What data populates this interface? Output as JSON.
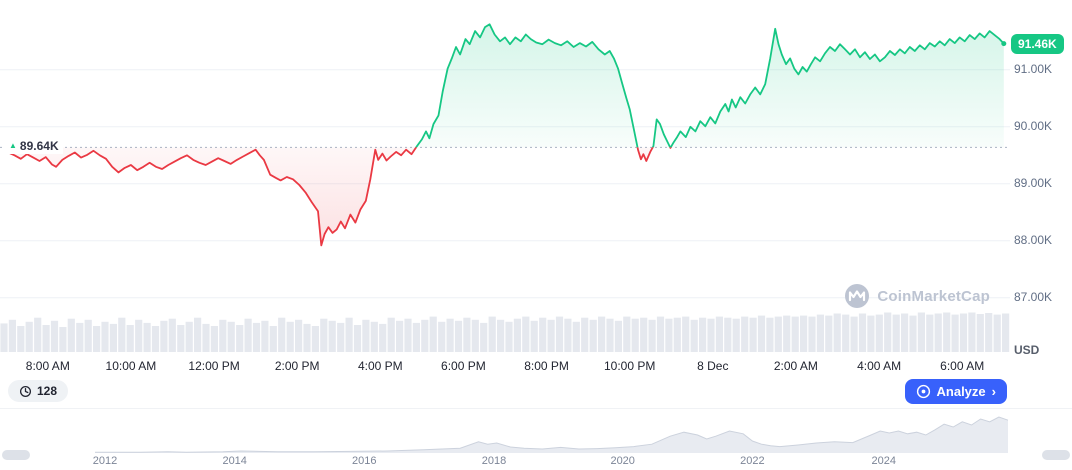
{
  "watermark": {
    "text": "CoinMarketCap"
  },
  "toolbar": {
    "history_count": "128",
    "analyze_label": "Analyze",
    "analyze_chevron": "›"
  },
  "chart_data": {
    "type": "line",
    "title": "Intraday price chart (USD)",
    "unit_label": "USD",
    "legend": "none",
    "grid": "horizontal",
    "baseline": {
      "value": 89.64,
      "label": "89.64K"
    },
    "last": {
      "value": 91.46,
      "label": "91.46K"
    },
    "ylim": [
      86.79,
      92.05
    ],
    "x_domain_hours": [
      -0.15,
      24.15
    ],
    "y_ticks": [
      {
        "value": 91.0,
        "label": "91.00K"
      },
      {
        "value": 90.0,
        "label": "90.00K"
      },
      {
        "value": 89.0,
        "label": "89.00K"
      },
      {
        "value": 88.0,
        "label": "88.00K"
      },
      {
        "value": 87.0,
        "label": "87.00K"
      }
    ],
    "x_ticks": [
      {
        "t": 1,
        "label": "8:00 AM"
      },
      {
        "t": 3,
        "label": "10:00 AM"
      },
      {
        "t": 5,
        "label": "12:00 PM"
      },
      {
        "t": 7,
        "label": "2:00 PM"
      },
      {
        "t": 9,
        "label": "4:00 PM"
      },
      {
        "t": 11,
        "label": "6:00 PM"
      },
      {
        "t": 13,
        "label": "8:00 PM"
      },
      {
        "t": 15,
        "label": "10:00 PM"
      },
      {
        "t": 17,
        "label": "8 Dec"
      },
      {
        "t": 19,
        "label": "2:00 AM"
      },
      {
        "t": 21,
        "label": "4:00 AM"
      },
      {
        "t": 23,
        "label": "6:00 AM"
      }
    ],
    "colors": {
      "up": "#16c784",
      "down": "#ea3943",
      "badge": "#16c784",
      "analyze_blue": "#3861fb"
    },
    "points": [
      [
        0.05,
        89.55
      ],
      [
        0.2,
        89.5
      ],
      [
        0.35,
        89.44
      ],
      [
        0.5,
        89.52
      ],
      [
        0.65,
        89.46
      ],
      [
        0.8,
        89.4
      ],
      [
        0.95,
        89.47
      ],
      [
        1.1,
        89.34
      ],
      [
        1.2,
        89.3
      ],
      [
        1.35,
        89.42
      ],
      [
        1.5,
        89.49
      ],
      [
        1.65,
        89.55
      ],
      [
        1.8,
        89.46
      ],
      [
        1.95,
        89.51
      ],
      [
        2.1,
        89.58
      ],
      [
        2.25,
        89.5
      ],
      [
        2.4,
        89.44
      ],
      [
        2.55,
        89.3
      ],
      [
        2.7,
        89.2
      ],
      [
        2.85,
        89.28
      ],
      [
        3.0,
        89.33
      ],
      [
        3.15,
        89.24
      ],
      [
        3.3,
        89.3
      ],
      [
        3.45,
        89.37
      ],
      [
        3.6,
        89.3
      ],
      [
        3.75,
        89.26
      ],
      [
        3.9,
        89.33
      ],
      [
        4.05,
        89.39
      ],
      [
        4.2,
        89.45
      ],
      [
        4.35,
        89.5
      ],
      [
        4.5,
        89.42
      ],
      [
        4.65,
        89.37
      ],
      [
        4.8,
        89.33
      ],
      [
        4.95,
        89.39
      ],
      [
        5.1,
        89.45
      ],
      [
        5.25,
        89.4
      ],
      [
        5.4,
        89.35
      ],
      [
        5.55,
        89.42
      ],
      [
        5.7,
        89.48
      ],
      [
        5.85,
        89.54
      ],
      [
        6.0,
        89.6
      ],
      [
        6.1,
        89.5
      ],
      [
        6.2,
        89.42
      ],
      [
        6.35,
        89.16
      ],
      [
        6.5,
        89.1
      ],
      [
        6.6,
        89.06
      ],
      [
        6.75,
        89.12
      ],
      [
        6.9,
        89.08
      ],
      [
        7.05,
        88.98
      ],
      [
        7.2,
        88.85
      ],
      [
        7.35,
        88.68
      ],
      [
        7.5,
        88.52
      ],
      [
        7.58,
        87.92
      ],
      [
        7.66,
        88.12
      ],
      [
        7.75,
        88.24
      ],
      [
        7.85,
        88.14
      ],
      [
        7.95,
        88.2
      ],
      [
        8.05,
        88.34
      ],
      [
        8.15,
        88.22
      ],
      [
        8.28,
        88.46
      ],
      [
        8.4,
        88.32
      ],
      [
        8.52,
        88.55
      ],
      [
        8.65,
        88.7
      ],
      [
        8.76,
        89.08
      ],
      [
        8.88,
        89.6
      ],
      [
        8.95,
        89.42
      ],
      [
        9.05,
        89.53
      ],
      [
        9.15,
        89.41
      ],
      [
        9.25,
        89.48
      ],
      [
        9.38,
        89.56
      ],
      [
        9.5,
        89.5
      ],
      [
        9.62,
        89.6
      ],
      [
        9.75,
        89.52
      ],
      [
        9.88,
        89.66
      ],
      [
        10.0,
        89.78
      ],
      [
        10.1,
        89.92
      ],
      [
        10.18,
        89.8
      ],
      [
        10.28,
        90.05
      ],
      [
        10.4,
        90.2
      ],
      [
        10.5,
        90.62
      ],
      [
        10.62,
        91.02
      ],
      [
        10.72,
        91.2
      ],
      [
        10.82,
        91.4
      ],
      [
        10.92,
        91.27
      ],
      [
        11.05,
        91.54
      ],
      [
        11.15,
        91.45
      ],
      [
        11.28,
        91.68
      ],
      [
        11.4,
        91.57
      ],
      [
        11.52,
        91.75
      ],
      [
        11.63,
        91.8
      ],
      [
        11.75,
        91.62
      ],
      [
        11.88,
        91.5
      ],
      [
        12.0,
        91.57
      ],
      [
        12.12,
        91.45
      ],
      [
        12.25,
        91.57
      ],
      [
        12.38,
        91.5
      ],
      [
        12.5,
        91.62
      ],
      [
        12.62,
        91.54
      ],
      [
        12.75,
        91.48
      ],
      [
        12.9,
        91.45
      ],
      [
        13.05,
        91.53
      ],
      [
        13.2,
        91.47
      ],
      [
        13.35,
        91.43
      ],
      [
        13.5,
        91.5
      ],
      [
        13.65,
        91.4
      ],
      [
        13.8,
        91.47
      ],
      [
        13.95,
        91.41
      ],
      [
        14.1,
        91.49
      ],
      [
        14.25,
        91.36
      ],
      [
        14.4,
        91.27
      ],
      [
        14.52,
        91.33
      ],
      [
        14.62,
        91.2
      ],
      [
        14.72,
        91.02
      ],
      [
        14.82,
        90.76
      ],
      [
        14.92,
        90.5
      ],
      [
        15.0,
        90.31
      ],
      [
        15.1,
        89.96
      ],
      [
        15.2,
        89.6
      ],
      [
        15.27,
        89.43
      ],
      [
        15.33,
        89.52
      ],
      [
        15.4,
        89.4
      ],
      [
        15.5,
        89.57
      ],
      [
        15.57,
        89.66
      ],
      [
        15.65,
        90.13
      ],
      [
        15.73,
        90.05
      ],
      [
        15.82,
        89.87
      ],
      [
        15.9,
        89.75
      ],
      [
        15.98,
        89.63
      ],
      [
        16.06,
        89.73
      ],
      [
        16.14,
        89.82
      ],
      [
        16.22,
        89.92
      ],
      [
        16.35,
        89.82
      ],
      [
        16.46,
        90.0
      ],
      [
        16.58,
        89.92
      ],
      [
        16.7,
        90.1
      ],
      [
        16.82,
        90.01
      ],
      [
        16.94,
        90.17
      ],
      [
        17.06,
        90.06
      ],
      [
        17.18,
        90.27
      ],
      [
        17.3,
        90.4
      ],
      [
        17.38,
        90.27
      ],
      [
        17.46,
        90.48
      ],
      [
        17.55,
        90.34
      ],
      [
        17.66,
        90.52
      ],
      [
        17.78,
        90.41
      ],
      [
        17.9,
        90.57
      ],
      [
        18.02,
        90.69
      ],
      [
        18.14,
        90.57
      ],
      [
        18.26,
        90.75
      ],
      [
        18.38,
        91.2
      ],
      [
        18.5,
        91.72
      ],
      [
        18.58,
        91.45
      ],
      [
        18.66,
        91.27
      ],
      [
        18.76,
        91.1
      ],
      [
        18.86,
        91.2
      ],
      [
        18.96,
        91.02
      ],
      [
        19.06,
        90.92
      ],
      [
        19.16,
        91.05
      ],
      [
        19.26,
        90.97
      ],
      [
        19.36,
        91.1
      ],
      [
        19.46,
        91.22
      ],
      [
        19.58,
        91.15
      ],
      [
        19.7,
        91.29
      ],
      [
        19.82,
        91.4
      ],
      [
        19.94,
        91.33
      ],
      [
        20.06,
        91.45
      ],
      [
        20.18,
        91.36
      ],
      [
        20.3,
        91.27
      ],
      [
        20.42,
        91.36
      ],
      [
        20.54,
        91.22
      ],
      [
        20.66,
        91.31
      ],
      [
        20.78,
        91.19
      ],
      [
        20.9,
        91.27
      ],
      [
        21.02,
        91.15
      ],
      [
        21.14,
        91.22
      ],
      [
        21.26,
        91.33
      ],
      [
        21.38,
        91.26
      ],
      [
        21.5,
        91.36
      ],
      [
        21.62,
        91.29
      ],
      [
        21.74,
        91.4
      ],
      [
        21.86,
        91.33
      ],
      [
        21.98,
        91.43
      ],
      [
        22.1,
        91.36
      ],
      [
        22.22,
        91.47
      ],
      [
        22.34,
        91.41
      ],
      [
        22.46,
        91.5
      ],
      [
        22.58,
        91.43
      ],
      [
        22.7,
        91.54
      ],
      [
        22.82,
        91.47
      ],
      [
        22.94,
        91.57
      ],
      [
        23.06,
        91.5
      ],
      [
        23.18,
        91.61
      ],
      [
        23.3,
        91.54
      ],
      [
        23.42,
        91.64
      ],
      [
        23.54,
        91.57
      ],
      [
        23.66,
        91.68
      ],
      [
        23.78,
        91.61
      ],
      [
        23.9,
        91.54
      ],
      [
        24.0,
        91.46
      ]
    ],
    "volume": [
      0.55,
      0.62,
      0.5,
      0.58,
      0.66,
      0.52,
      0.6,
      0.48,
      0.64,
      0.56,
      0.62,
      0.5,
      0.58,
      0.54,
      0.66,
      0.52,
      0.62,
      0.56,
      0.5,
      0.6,
      0.64,
      0.52,
      0.58,
      0.66,
      0.54,
      0.5,
      0.62,
      0.58,
      0.52,
      0.64,
      0.56,
      0.6,
      0.5,
      0.66,
      0.58,
      0.62,
      0.54,
      0.5,
      0.64,
      0.6,
      0.56,
      0.66,
      0.52,
      0.62,
      0.58,
      0.54,
      0.66,
      0.6,
      0.64,
      0.56,
      0.62,
      0.68,
      0.58,
      0.64,
      0.6,
      0.66,
      0.62,
      0.56,
      0.68,
      0.62,
      0.58,
      0.64,
      0.68,
      0.6,
      0.66,
      0.62,
      0.68,
      0.64,
      0.58,
      0.66,
      0.62,
      0.68,
      0.64,
      0.6,
      0.68,
      0.64,
      0.66,
      0.62,
      0.68,
      0.64,
      0.66,
      0.68,
      0.62,
      0.66,
      0.64,
      0.68,
      0.66,
      0.64,
      0.68,
      0.66,
      0.7,
      0.66,
      0.68,
      0.7,
      0.68,
      0.7,
      0.68,
      0.72,
      0.7,
      0.74,
      0.72,
      0.68,
      0.74,
      0.7,
      0.72,
      0.76,
      0.72,
      0.74,
      0.7,
      0.76,
      0.72,
      0.74,
      0.76,
      0.72,
      0.74,
      0.76,
      0.73,
      0.75,
      0.72,
      0.74
    ],
    "timeline": {
      "points": [
        [
          0,
          0.02
        ],
        [
          0.05,
          0.02
        ],
        [
          0.08,
          0.03
        ],
        [
          0.1,
          0.02
        ],
        [
          0.14,
          0.03
        ],
        [
          0.16,
          0.05
        ],
        [
          0.18,
          0.04
        ],
        [
          0.2,
          0.03
        ],
        [
          0.24,
          0.03
        ],
        [
          0.28,
          0.04
        ],
        [
          0.32,
          0.05
        ],
        [
          0.36,
          0.08
        ],
        [
          0.4,
          0.12
        ],
        [
          0.42,
          0.28
        ],
        [
          0.43,
          0.22
        ],
        [
          0.44,
          0.25
        ],
        [
          0.455,
          0.15
        ],
        [
          0.47,
          0.12
        ],
        [
          0.49,
          0.1
        ],
        [
          0.51,
          0.14
        ],
        [
          0.53,
          0.1
        ],
        [
          0.55,
          0.11
        ],
        [
          0.57,
          0.13
        ],
        [
          0.59,
          0.16
        ],
        [
          0.61,
          0.22
        ],
        [
          0.63,
          0.42
        ],
        [
          0.645,
          0.52
        ],
        [
          0.66,
          0.45
        ],
        [
          0.67,
          0.35
        ],
        [
          0.68,
          0.42
        ],
        [
          0.695,
          0.55
        ],
        [
          0.71,
          0.48
        ],
        [
          0.72,
          0.3
        ],
        [
          0.73,
          0.22
        ],
        [
          0.74,
          0.18
        ],
        [
          0.75,
          0.16
        ],
        [
          0.77,
          0.2
        ],
        [
          0.79,
          0.25
        ],
        [
          0.81,
          0.28
        ],
        [
          0.83,
          0.26
        ],
        [
          0.85,
          0.45
        ],
        [
          0.86,
          0.55
        ],
        [
          0.87,
          0.5
        ],
        [
          0.88,
          0.55
        ],
        [
          0.89,
          0.48
        ],
        [
          0.9,
          0.52
        ],
        [
          0.91,
          0.45
        ],
        [
          0.92,
          0.58
        ],
        [
          0.93,
          0.72
        ],
        [
          0.94,
          0.65
        ],
        [
          0.95,
          0.78
        ],
        [
          0.96,
          0.7
        ],
        [
          0.97,
          0.85
        ],
        [
          0.98,
          0.78
        ],
        [
          0.99,
          0.9
        ],
        [
          1,
          0.82
        ]
      ],
      "years": [
        {
          "f": 0.011,
          "label": "2012"
        },
        {
          "f": 0.153,
          "label": "2014"
        },
        {
          "f": 0.295,
          "label": "2016"
        },
        {
          "f": 0.437,
          "label": "2018"
        },
        {
          "f": 0.578,
          "label": "2020"
        },
        {
          "f": 0.72,
          "label": "2022"
        },
        {
          "f": 0.864,
          "label": "2024"
        }
      ]
    }
  }
}
